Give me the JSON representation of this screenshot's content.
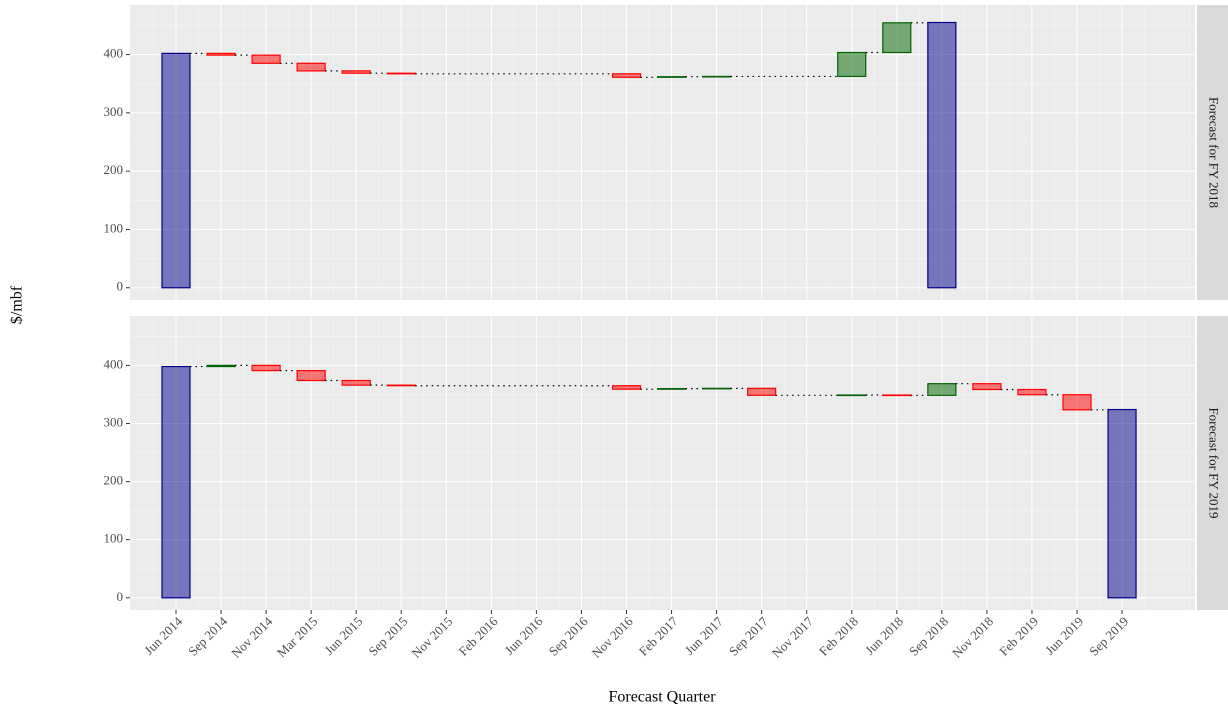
{
  "chart_data": {
    "type": "waterfall",
    "x_label": "Forecast Quarter",
    "y_label": "$/mbf",
    "categories": [
      "Jun 2014",
      "Sep 2014",
      "Nov 2014",
      "Mar 2015",
      "Jun 2015",
      "Sep 2015",
      "Nov 2015",
      "Feb 2016",
      "Jun 2016",
      "Sep 2016",
      "Nov 2016",
      "Feb 2017",
      "Jun 2017",
      "Sep 2017",
      "Nov 2017",
      "Feb 2018",
      "Jun 2018",
      "Sep 2018",
      "Nov 2018",
      "Feb 2019",
      "Jun 2019",
      "Sep 2019"
    ],
    "ylim": [
      -21,
      485
    ],
    "yticks": [
      0,
      100,
      200,
      300,
      400
    ],
    "grid": true,
    "colors": {
      "total": "#00008b",
      "increase": "#006400",
      "decrease": "#ff0000"
    },
    "facets": [
      {
        "label": "Forecast for FY 2018",
        "values": [
          402,
          -3,
          -14,
          -13,
          -4,
          -1,
          null,
          null,
          null,
          null,
          -6,
          1,
          0.5,
          null,
          null,
          41,
          51,
          455,
          null,
          null,
          null,
          null
        ]
      },
      {
        "label": "Forecast for FY 2019",
        "values": [
          398,
          2,
          -9,
          -17,
          -8,
          -1,
          null,
          null,
          null,
          null,
          -6,
          1,
          0.5,
          -12,
          null,
          0.5,
          -0.5,
          20,
          -10,
          -9,
          -26,
          324
        ]
      }
    ]
  }
}
